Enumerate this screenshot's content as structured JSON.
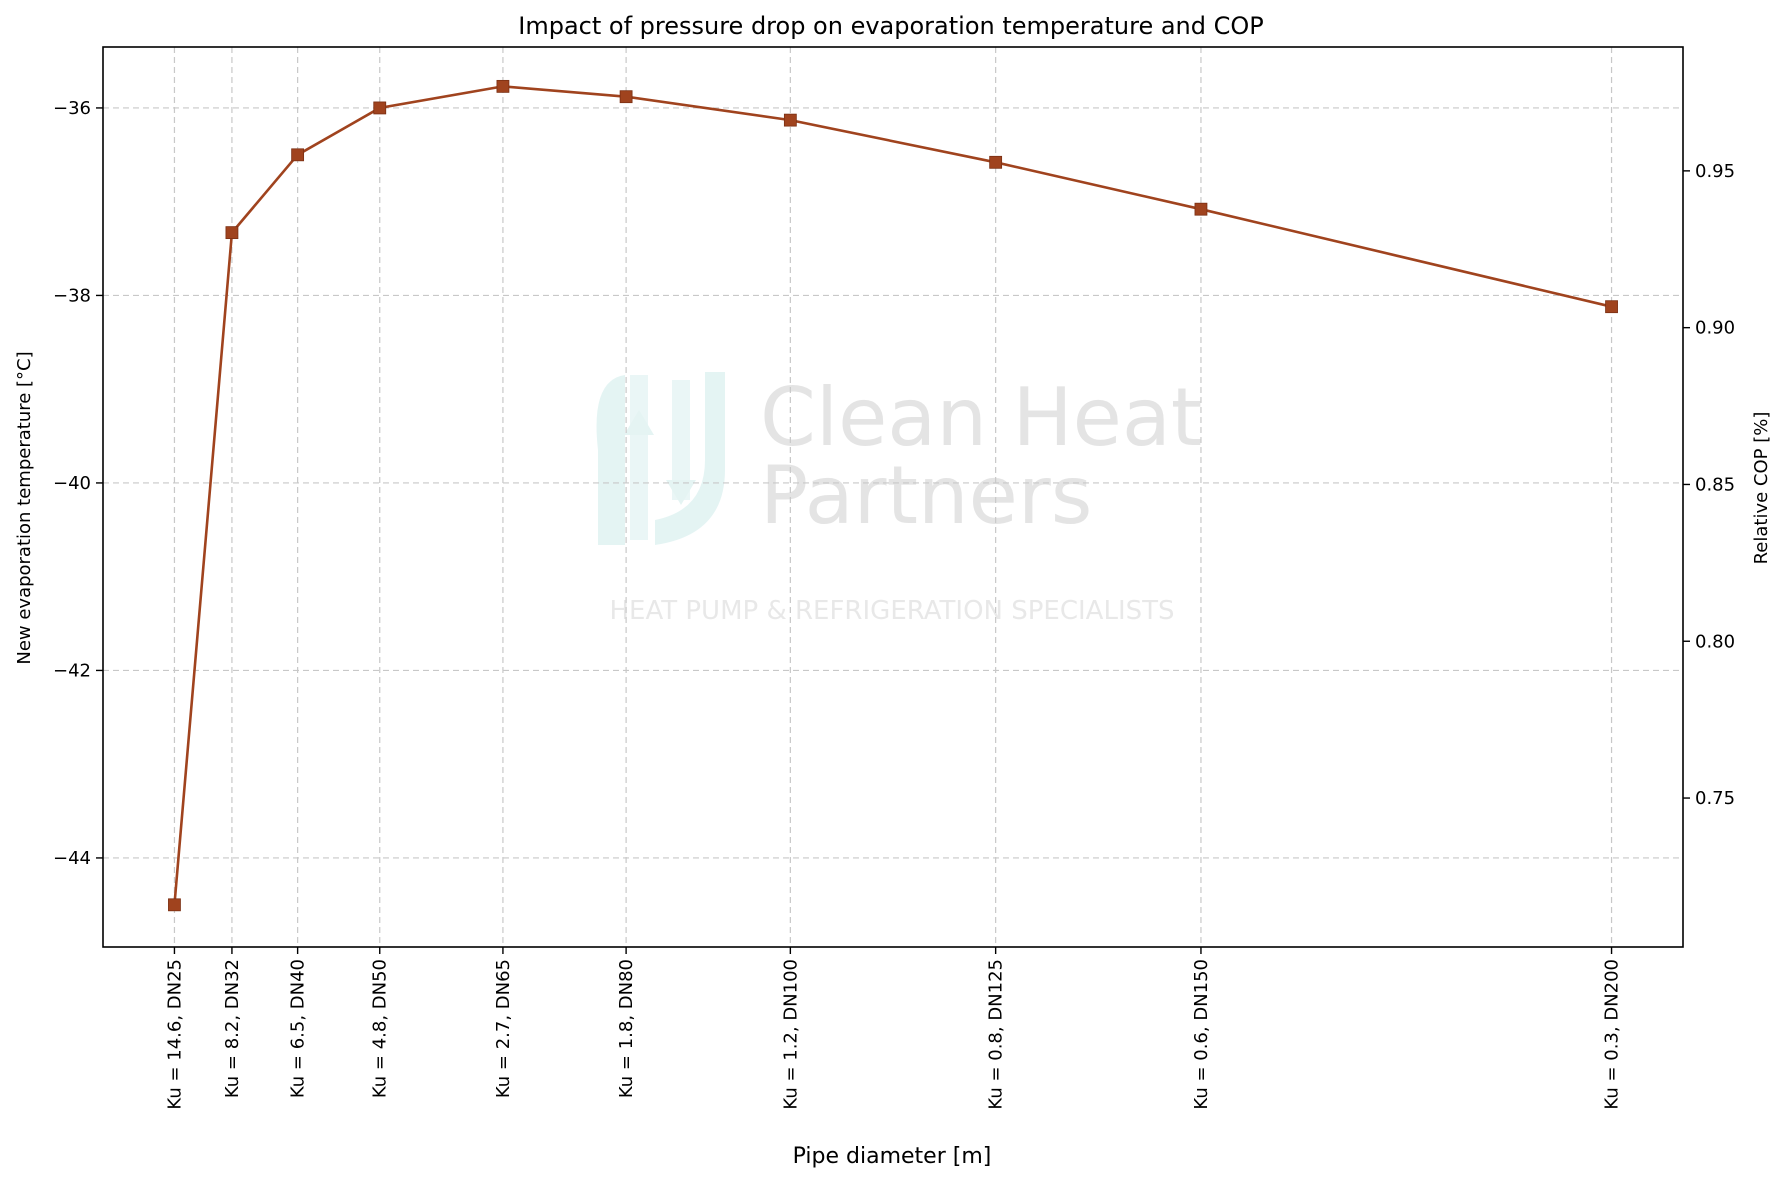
{
  "chart_data": {
    "type": "line",
    "title": "Impact of pressure drop on evaporation temperature and COP",
    "xlabel": "Pipe diameter [m]",
    "ylabel": "New evaporation temperature [°C]",
    "y2label": "Relative COP [%]",
    "grid": true,
    "x": [
      0.025,
      0.032,
      0.04,
      0.05,
      0.065,
      0.08,
      0.1,
      0.125,
      0.15,
      0.2
    ],
    "xtick_labels": [
      "Ku = 14.6, DN25",
      "Ku = 8.2, DN32",
      "Ku = 6.5, DN40",
      "Ku = 4.8, DN50",
      "Ku = 2.7, DN65",
      "Ku = 1.8, DN80",
      "Ku = 1.2, DN100",
      "Ku = 0.8, DN125",
      "Ku = 0.6, DN150",
      "Ku = 0.3, DN200"
    ],
    "series": [
      {
        "values": [
          -44.5,
          -37.33,
          -36.5,
          -36.0,
          -35.77,
          -35.88,
          -36.13,
          -36.58,
          -37.08,
          -38.12
        ],
        "color": "#a0431e",
        "marker": "square"
      }
    ],
    "ylim": [
      -44.95,
      -35.35
    ],
    "yticks": [
      -44,
      -42,
      -40,
      -38,
      -36
    ],
    "ytick_labels": [
      "−44",
      "−42",
      "−40",
      "−38",
      "−36"
    ],
    "y2lim": [
      0.7025,
      0.9895
    ],
    "y2ticks": [
      0.75,
      0.8,
      0.85,
      0.9,
      0.95
    ],
    "y2tick_labels": [
      "0.75",
      "0.80",
      "0.85",
      "0.90",
      "0.95"
    ]
  },
  "watermark": {
    "line1": "Clean Heat",
    "line2": "Partners",
    "tagline": "HEAT PUMP & REFRIGERATION SPECIALISTS",
    "logo_icon": "heat-pump-arrows-logo",
    "logo_color": "#d6efee"
  }
}
